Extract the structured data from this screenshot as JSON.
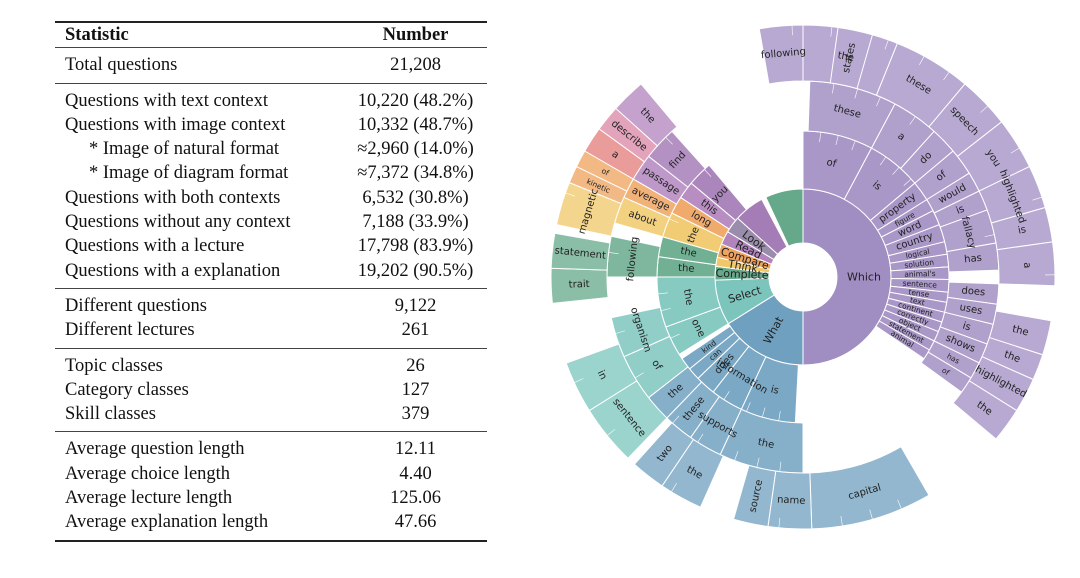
{
  "table": {
    "header": {
      "statistic": "Statistic",
      "number": "Number"
    },
    "groups": [
      [
        {
          "label": "Total questions",
          "value": "21,208"
        }
      ],
      [
        {
          "label": "Questions with text context",
          "value": "10,220 (48.2%)"
        },
        {
          "label": "Questions with image context",
          "value": "10,332 (48.7%)"
        },
        {
          "label": "* Image of natural format",
          "value": "≈2,960 (14.0%)",
          "indent": true
        },
        {
          "label": "* Image of diagram format",
          "value": "≈7,372 (34.8%)",
          "indent": true
        },
        {
          "label": "Questions with both contexts",
          "value": "6,532 (30.8%)"
        },
        {
          "label": "Questions without any context",
          "value": "7,188 (33.9%)"
        },
        {
          "label": "Questions with a lecture",
          "value": "17,798 (83.9%)"
        },
        {
          "label": "Questions with a explanation",
          "value": "19,202 (90.5%)"
        }
      ],
      [
        {
          "label": "Different questions",
          "value": "9,122"
        },
        {
          "label": "Different lectures",
          "value": "261"
        }
      ],
      [
        {
          "label": "Topic classes",
          "value": "26"
        },
        {
          "label": "Category classes",
          "value": "127"
        },
        {
          "label": "Skill classes",
          "value": "379"
        }
      ],
      [
        {
          "label": "Average question length",
          "value": "12.11"
        },
        {
          "label": "Average choice length",
          "value": "4.40"
        },
        {
          "label": "Average lecture length",
          "value": "125.06"
        },
        {
          "label": "Average explanation length",
          "value": "47.66"
        }
      ]
    ]
  },
  "chart_data": {
    "type": "sunburst",
    "title": "",
    "colors": {
      "purple": "#a08ec2",
      "blue": "#6fa0c0",
      "teal": "#7cc5bd",
      "green": "#66a98a",
      "lightgreen": "#9bcf9f",
      "yellow": "#f0c869",
      "orange": "#eea35f",
      "red": "#e27d79",
      "pink": "#d986a6",
      "violet": "#b284bd",
      "mauve": "#a47cb6",
      "grey": "#9a8dac"
    },
    "first_words": [
      {
        "word": "Which",
        "color": "purple",
        "start": 0,
        "end": 180
      },
      {
        "word": "What",
        "color": "blue",
        "start": 180,
        "end": 238
      },
      {
        "word": "Select",
        "color": "teal",
        "start": 238,
        "end": 268
      },
      {
        "word": "Complete",
        "color": "green",
        "start": 268,
        "end": 277
      },
      {
        "word": "Think",
        "color": "yellow",
        "start": 277,
        "end": 283
      },
      {
        "word": "Compare",
        "color": "orange",
        "start": 283,
        "end": 292
      },
      {
        "word": "Read",
        "color": "violet",
        "start": 292,
        "end": 301
      },
      {
        "word": "Look",
        "color": "grey",
        "start": 301,
        "end": 312
      },
      {
        "word": "",
        "color": "mauve",
        "start": 312,
        "end": 332
      },
      {
        "word": "",
        "color": "green",
        "start": 335,
        "end": 360
      }
    ],
    "second_words": [
      {
        "word": "of",
        "color": "purple",
        "start": 0,
        "end": 28
      },
      {
        "word": "is",
        "color": "purple",
        "start": 28,
        "end": 50
      },
      {
        "word": "property",
        "color": "purple",
        "start": 50,
        "end": 58
      },
      {
        "word": "figure",
        "color": "purple",
        "start": 58,
        "end": 63
      },
      {
        "word": "word",
        "color": "purple",
        "start": 63,
        "end": 69
      },
      {
        "word": "country",
        "color": "purple",
        "start": 69,
        "end": 76
      },
      {
        "word": "logical",
        "color": "purple",
        "start": 76,
        "end": 81
      },
      {
        "word": "solution",
        "color": "purple",
        "start": 81,
        "end": 86
      },
      {
        "word": "animal's",
        "color": "purple",
        "start": 86,
        "end": 91
      },
      {
        "word": "sentence",
        "color": "purple",
        "start": 91,
        "end": 96
      },
      {
        "word": "tense",
        "color": "purple",
        "start": 96,
        "end": 100
      },
      {
        "word": "text",
        "color": "purple",
        "start": 100,
        "end": 104
      },
      {
        "word": "continent",
        "color": "purple",
        "start": 104,
        "end": 108
      },
      {
        "word": "correctly",
        "color": "purple",
        "start": 108,
        "end": 112
      },
      {
        "word": "object",
        "color": "purple",
        "start": 112,
        "end": 116
      },
      {
        "word": "statement",
        "color": "purple",
        "start": 116,
        "end": 120
      },
      {
        "word": "animal",
        "color": "purple",
        "start": 120,
        "end": 124
      },
      {
        "word": "is",
        "color": "blue",
        "start": 183,
        "end": 205
      },
      {
        "word": "information",
        "color": "blue",
        "start": 205,
        "end": 218
      },
      {
        "word": "does",
        "color": "blue",
        "start": 218,
        "end": 226
      },
      {
        "word": "can",
        "color": "blue",
        "start": 226,
        "end": 231
      },
      {
        "word": "kind",
        "color": "blue",
        "start": 231,
        "end": 236
      },
      {
        "word": "one",
        "color": "teal",
        "start": 238,
        "end": 250
      },
      {
        "word": "the",
        "color": "teal",
        "start": 250,
        "end": 270
      },
      {
        "word": "the",
        "color": "green",
        "start": 270,
        "end": 278
      },
      {
        "word": "the",
        "color": "green",
        "start": 278,
        "end": 286
      },
      {
        "word": "the",
        "color": "yellow",
        "start": 286,
        "end": 296
      },
      {
        "word": "long",
        "color": "orange",
        "start": 296,
        "end": 303
      },
      {
        "word": "this",
        "color": "violet",
        "start": 303,
        "end": 310
      },
      {
        "word": "you",
        "color": "mauve",
        "start": 310,
        "end": 320
      }
    ],
    "third_words": [
      {
        "word": "these",
        "color": "purple",
        "start": 2,
        "end": 28
      },
      {
        "word": "a",
        "color": "purple",
        "start": 28,
        "end": 42
      },
      {
        "word": "do",
        "color": "purple",
        "start": 42,
        "end": 50
      },
      {
        "word": "of",
        "color": "purple",
        "start": 50,
        "end": 58
      },
      {
        "word": "would",
        "color": "purple",
        "start": 58,
        "end": 64
      },
      {
        "word": "is",
        "color": "purple",
        "start": 64,
        "end": 70
      },
      {
        "word": "fallacy",
        "color": "purple",
        "start": 70,
        "end": 80
      },
      {
        "word": "has",
        "color": "purple",
        "start": 80,
        "end": 88
      },
      {
        "word": "does",
        "color": "purple",
        "start": 92,
        "end": 98
      },
      {
        "word": "uses",
        "color": "purple",
        "start": 98,
        "end": 104
      },
      {
        "word": "is",
        "color": "purple",
        "start": 104,
        "end": 110
      },
      {
        "word": "shows",
        "color": "purple",
        "start": 110,
        "end": 116
      },
      {
        "word": "has",
        "color": "purple",
        "start": 116,
        "end": 121
      },
      {
        "word": "of",
        "color": "purple",
        "start": 121,
        "end": 126
      },
      {
        "word": "the",
        "color": "blue",
        "start": 180,
        "end": 205
      },
      {
        "word": "supports",
        "color": "blue",
        "start": 205,
        "end": 215
      },
      {
        "word": "these",
        "color": "blue",
        "start": 215,
        "end": 224
      },
      {
        "word": "the",
        "color": "blue",
        "start": 224,
        "end": 232
      },
      {
        "word": "of",
        "color": "teal",
        "start": 232,
        "end": 246
      },
      {
        "word": "organism",
        "color": "teal",
        "start": 246,
        "end": 258
      },
      {
        "word": "following",
        "color": "green",
        "start": 270,
        "end": 282
      },
      {
        "word": "about",
        "color": "yellow",
        "start": 286,
        "end": 294
      },
      {
        "word": "average",
        "color": "orange",
        "start": 294,
        "end": 300
      },
      {
        "word": "passage",
        "color": "violet",
        "start": 300,
        "end": 308
      },
      {
        "word": "find",
        "color": "mauve",
        "start": 308,
        "end": 318
      }
    ],
    "fourth_words": [
      {
        "word": "the",
        "color": "purple",
        "start": 0,
        "end": 22
      },
      {
        "word": "these",
        "color": "purple",
        "start": 22,
        "end": 40
      },
      {
        "word": "speech",
        "color": "purple",
        "start": 40,
        "end": 52
      },
      {
        "word": "you",
        "color": "purple",
        "start": 52,
        "end": 64
      },
      {
        "word": "highlighted",
        "color": "purple",
        "start": 64,
        "end": 74
      },
      {
        "word": "is",
        "color": "purple",
        "start": 74,
        "end": 82
      },
      {
        "word": "a",
        "color": "purple",
        "start": 82,
        "end": 92
      },
      {
        "word": "the",
        "color": "purple",
        "start": 100,
        "end": 108
      },
      {
        "word": "the",
        "color": "purple",
        "start": 108,
        "end": 114
      },
      {
        "word": "highlighted",
        "color": "purple",
        "start": 114,
        "end": 122
      },
      {
        "word": "the",
        "color": "purple",
        "start": 122,
        "end": 130
      },
      {
        "word": "capital",
        "color": "blue",
        "start": 150,
        "end": 178
      },
      {
        "word": "name",
        "color": "blue",
        "start": 178,
        "end": 188
      },
      {
        "word": "source",
        "color": "blue",
        "start": 188,
        "end": 196
      },
      {
        "word": "the",
        "color": "blue",
        "start": 204,
        "end": 214
      },
      {
        "word": "two",
        "color": "blue",
        "start": 214,
        "end": 222
      },
      {
        "word": "sentence",
        "color": "teal",
        "start": 224,
        "end": 238
      },
      {
        "word": "in",
        "color": "teal",
        "start": 238,
        "end": 250
      },
      {
        "word": "trait",
        "color": "green",
        "start": 264,
        "end": 272
      },
      {
        "word": "statement",
        "color": "green",
        "start": 272,
        "end": 280
      },
      {
        "word": "magnetic",
        "color": "yellow",
        "start": 282,
        "end": 292
      },
      {
        "word": "kinetic",
        "color": "orange",
        "start": 292,
        "end": 296
      },
      {
        "word": "of",
        "color": "orange",
        "start": 296,
        "end": 300
      },
      {
        "word": "a",
        "color": "red",
        "start": 300,
        "end": 306
      },
      {
        "word": "describe",
        "color": "pink",
        "start": 306,
        "end": 312
      },
      {
        "word": "the",
        "color": "violet",
        "start": 312,
        "end": 320
      },
      {
        "word": "following",
        "color": "purple",
        "start": 350,
        "end": 360
      },
      {
        "word": "states",
        "color": "purple",
        "start": 8,
        "end": 16
      }
    ]
  }
}
